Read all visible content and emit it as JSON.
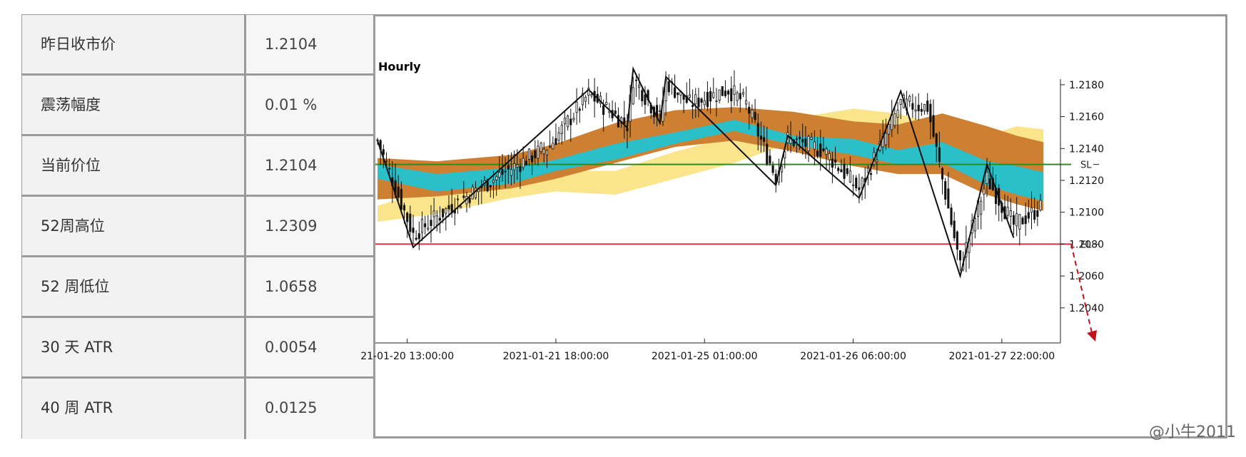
{
  "stats": [
    {
      "label": "昨日收市价",
      "value": "1.2104"
    },
    {
      "label": "震荡幅度",
      "value": "0.01 %"
    },
    {
      "label": "当前价位",
      "value": "1.2104"
    },
    {
      "label": "52周高位",
      "value": "1.2309"
    },
    {
      "label": "52 周低位",
      "value": "1.0658"
    },
    {
      "label": "30 天 ATR",
      "value": "0.0054"
    },
    {
      "label": "40 周 ATR",
      "value": "0.0125"
    }
  ],
  "watermark": "@小牛2011",
  "chart_data": {
    "type": "candlestick",
    "timeframe": "Hourly",
    "ylim": [
      1.2018,
      1.2188
    ],
    "y_ticks": [
      "1.2180",
      "1.2160",
      "1.2140",
      "1.2120",
      "1.2100",
      "1.2080",
      "1.2060",
      "1.2040"
    ],
    "y_tick_values": [
      1.218,
      1.216,
      1.214,
      1.212,
      1.21,
      1.208,
      1.206,
      1.204
    ],
    "x_ticks": [
      "21-01-20 13:00:00",
      "2021-01-21 18:00:00",
      "2021-01-25 01:00:00",
      "2021-01-26 06:00:00",
      "2021-01-27 22:00:00"
    ],
    "x_tick_bars": [
      10,
      60,
      110,
      160,
      210
    ],
    "n_bars": 224,
    "levels": [
      {
        "name": "SL",
        "value": 1.213,
        "color": "#2e8b1e"
      },
      {
        "name": "EL",
        "value": 1.208,
        "color": "#e0303a"
      }
    ],
    "zigzag": [
      {
        "bar": 0,
        "price": 1.2145
      },
      {
        "bar": 12,
        "price": 1.2078
      },
      {
        "bar": 71,
        "price": 1.2177
      },
      {
        "bar": 84,
        "price": 1.2153
      },
      {
        "bar": 86,
        "price": 1.219
      },
      {
        "bar": 95,
        "price": 1.2156
      },
      {
        "bar": 97,
        "price": 1.2185
      },
      {
        "bar": 134,
        "price": 1.2117
      },
      {
        "bar": 138,
        "price": 1.2148
      },
      {
        "bar": 162,
        "price": 1.2109
      },
      {
        "bar": 176,
        "price": 1.2176
      },
      {
        "bar": 196,
        "price": 1.206
      },
      {
        "bar": 205,
        "price": 1.213
      },
      {
        "bar": 214,
        "price": 1.2084
      }
    ],
    "bands": [
      {
        "name": "band-yellow",
        "color": "#fbe58c",
        "upper": [
          [
            0,
            1.2104
          ],
          [
            20,
            1.2116
          ],
          [
            45,
            1.213
          ],
          [
            60,
            1.2126
          ],
          [
            80,
            1.2126
          ],
          [
            100,
            1.2138
          ],
          [
            120,
            1.2148
          ],
          [
            140,
            1.2159
          ],
          [
            160,
            1.2165
          ],
          [
            175,
            1.2162
          ],
          [
            190,
            1.2154
          ],
          [
            205,
            1.2148
          ],
          [
            215,
            1.2154
          ],
          [
            224,
            1.2152
          ]
        ],
        "lower": [
          [
            0,
            1.2094
          ],
          [
            20,
            1.2099
          ],
          [
            45,
            1.2109
          ],
          [
            60,
            1.2113
          ],
          [
            80,
            1.2111
          ],
          [
            100,
            1.2121
          ],
          [
            120,
            1.2131
          ],
          [
            140,
            1.2144
          ],
          [
            160,
            1.2145
          ],
          [
            175,
            1.2144
          ],
          [
            190,
            1.2141
          ],
          [
            205,
            1.2134
          ],
          [
            215,
            1.2137
          ],
          [
            224,
            1.214
          ]
        ]
      },
      {
        "name": "band-orange",
        "color": "#cd7f32",
        "upper": [
          [
            0,
            1.2134
          ],
          [
            20,
            1.2132
          ],
          [
            45,
            1.2136
          ],
          [
            60,
            1.2143
          ],
          [
            80,
            1.2156
          ],
          [
            100,
            1.2164
          ],
          [
            120,
            1.2166
          ],
          [
            140,
            1.2163
          ],
          [
            160,
            1.2157
          ],
          [
            175,
            1.2155
          ],
          [
            190,
            1.2162
          ],
          [
            205,
            1.2154
          ],
          [
            215,
            1.2148
          ],
          [
            224,
            1.2144
          ]
        ],
        "lower": [
          [
            0,
            1.2108
          ],
          [
            20,
            1.211
          ],
          [
            45,
            1.2115
          ],
          [
            60,
            1.2121
          ],
          [
            80,
            1.2131
          ],
          [
            100,
            1.2141
          ],
          [
            120,
            1.2145
          ],
          [
            140,
            1.2138
          ],
          [
            160,
            1.2129
          ],
          [
            175,
            1.2124
          ],
          [
            190,
            1.2124
          ],
          [
            205,
            1.2111
          ],
          [
            215,
            1.2105
          ],
          [
            224,
            1.2101
          ]
        ]
      },
      {
        "name": "band-teal",
        "color": "#2bbfc9",
        "upper": [
          [
            0,
            1.213
          ],
          [
            20,
            1.2124
          ],
          [
            45,
            1.2128
          ],
          [
            60,
            1.2133
          ],
          [
            80,
            1.2143
          ],
          [
            100,
            1.215
          ],
          [
            120,
            1.2158
          ],
          [
            140,
            1.2148
          ],
          [
            160,
            1.2146
          ],
          [
            175,
            1.2139
          ],
          [
            190,
            1.2144
          ],
          [
            205,
            1.2132
          ],
          [
            215,
            1.2129
          ],
          [
            224,
            1.2125
          ]
        ],
        "lower": [
          [
            0,
            1.2121
          ],
          [
            20,
            1.2113
          ],
          [
            45,
            1.2118
          ],
          [
            60,
            1.2126
          ],
          [
            80,
            1.2133
          ],
          [
            100,
            1.2143
          ],
          [
            120,
            1.2151
          ],
          [
            140,
            1.2142
          ],
          [
            160,
            1.2136
          ],
          [
            175,
            1.213
          ],
          [
            190,
            1.2131
          ],
          [
            205,
            1.2117
          ],
          [
            215,
            1.2111
          ],
          [
            224,
            1.2107
          ]
        ]
      }
    ],
    "candle_path": [
      [
        0,
        1.2145
      ],
      [
        12,
        1.2086
      ],
      [
        25,
        1.2104
      ],
      [
        40,
        1.2122
      ],
      [
        58,
        1.2142
      ],
      [
        71,
        1.2174
      ],
      [
        84,
        1.2155
      ],
      [
        86,
        1.2184
      ],
      [
        95,
        1.2159
      ],
      [
        97,
        1.2182
      ],
      [
        105,
        1.2168
      ],
      [
        118,
        1.2177
      ],
      [
        124,
        1.2168
      ],
      [
        134,
        1.2122
      ],
      [
        138,
        1.2146
      ],
      [
        150,
        1.2139
      ],
      [
        162,
        1.2114
      ],
      [
        176,
        1.2168
      ],
      [
        185,
        1.2166
      ],
      [
        196,
        1.2066
      ],
      [
        205,
        1.2121
      ],
      [
        214,
        1.2092
      ],
      [
        224,
        1.2104
      ]
    ]
  }
}
